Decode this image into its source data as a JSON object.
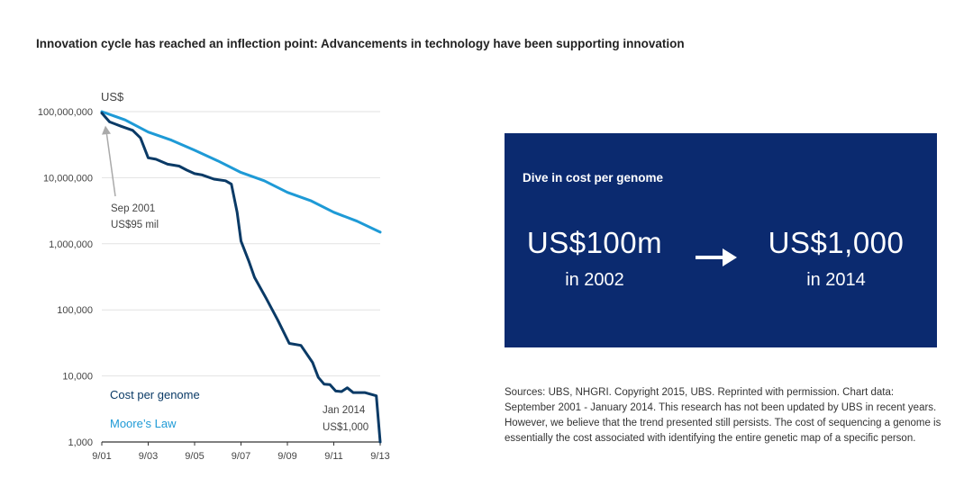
{
  "title": "Innovation cycle has reached an inflection point: Advancements in technology have been supporting innovation",
  "chart_data": {
    "type": "line",
    "y_unit_label": "US$",
    "y_scale": "log",
    "ylim": [
      1000,
      100000000
    ],
    "y_ticks": [
      {
        "value": 100000000,
        "label": "100,000,000"
      },
      {
        "value": 10000000,
        "label": "10,000,000"
      },
      {
        "value": 1000000,
        "label": "1,000,000"
      },
      {
        "value": 100000,
        "label": "100,000"
      },
      {
        "value": 10000,
        "label": "10,000"
      },
      {
        "value": 1000,
        "label": "1,000"
      }
    ],
    "xlim": [
      "2001-09",
      "2013-09"
    ],
    "x_ticks": [
      {
        "value": "2001-09",
        "label": "9/01"
      },
      {
        "value": "2003-09",
        "label": "9/03"
      },
      {
        "value": "2005-09",
        "label": "9/05"
      },
      {
        "value": "2007-09",
        "label": "9/07"
      },
      {
        "value": "2009-09",
        "label": "9/09"
      },
      {
        "value": "2011-09",
        "label": "9/11"
      },
      {
        "value": "2013-09",
        "label": "9/13"
      }
    ],
    "grid": true,
    "series": [
      {
        "name": "Cost per genome",
        "color": "#0a3a66",
        "points": [
          [
            "2001-09",
            95000000
          ],
          [
            "2002-01",
            70000000
          ],
          [
            "2002-07",
            60000000
          ],
          [
            "2003-01",
            52000000
          ],
          [
            "2003-05",
            40000000
          ],
          [
            "2003-09",
            20000000
          ],
          [
            "2004-01",
            19000000
          ],
          [
            "2004-07",
            16000000
          ],
          [
            "2005-01",
            15000000
          ],
          [
            "2005-05",
            13000000
          ],
          [
            "2005-09",
            11500000
          ],
          [
            "2006-01",
            11000000
          ],
          [
            "2006-07",
            9500000
          ],
          [
            "2007-01",
            9000000
          ],
          [
            "2007-04",
            8000000
          ],
          [
            "2007-07",
            3000000
          ],
          [
            "2007-09",
            1100000
          ],
          [
            "2008-01",
            550000
          ],
          [
            "2008-04",
            310000
          ],
          [
            "2008-10",
            150000
          ],
          [
            "2009-04",
            70000
          ],
          [
            "2009-10",
            31000
          ],
          [
            "2010-04",
            29000
          ],
          [
            "2010-10",
            16000
          ],
          [
            "2011-01",
            9500
          ],
          [
            "2011-04",
            7500
          ],
          [
            "2011-07",
            7400
          ],
          [
            "2011-10",
            5900
          ],
          [
            "2012-01",
            5800
          ],
          [
            "2012-04",
            6600
          ],
          [
            "2012-07",
            5600
          ],
          [
            "2013-01",
            5600
          ],
          [
            "2013-07",
            5000
          ],
          [
            "2013-09",
            1000
          ]
        ]
      },
      {
        "name": "Moore's Law",
        "color": "#1e9ad6",
        "points": [
          [
            "2001-09",
            100000000
          ],
          [
            "2002-09",
            75000000
          ],
          [
            "2003-09",
            49000000
          ],
          [
            "2004-09",
            37000000
          ],
          [
            "2005-09",
            26000000
          ],
          [
            "2006-09",
            18000000
          ],
          [
            "2007-09",
            12000000
          ],
          [
            "2008-09",
            9000000
          ],
          [
            "2009-09",
            6000000
          ],
          [
            "2010-09",
            4500000
          ],
          [
            "2011-09",
            3000000
          ],
          [
            "2012-09",
            2200000
          ],
          [
            "2013-09",
            1500000
          ]
        ]
      }
    ],
    "legend": {
      "placement": "bottom-left",
      "items": [
        "Cost per genome",
        "Moore’s Law"
      ]
    },
    "annotations": [
      {
        "lines": [
          "Sep 2001",
          "US$95 mil"
        ],
        "x": "2001-09",
        "y": 95000000,
        "arrow": true
      },
      {
        "lines": [
          "Jan 2014",
          "US$1,000"
        ],
        "x": "2013-09",
        "y": 1000,
        "arrow": false
      }
    ]
  },
  "panel": {
    "title": "Dive in cost per genome",
    "from_value": "US$100m",
    "from_year": "in 2002",
    "to_value": "US$1,000",
    "to_year": "in 2014",
    "background": "#0b2a6f",
    "arrow_icon": "right-arrow-icon"
  },
  "sources": "Sources: UBS, NHGRI. Copyright 2015, UBS. Reprinted with permission. Chart data: September 2001 - January 2014. This research has not been updated by UBS in recent years. However, we believe that the trend presented still persists. The cost of sequencing a genome is essentially the cost associated with identifying the entire genetic map of a specific person."
}
